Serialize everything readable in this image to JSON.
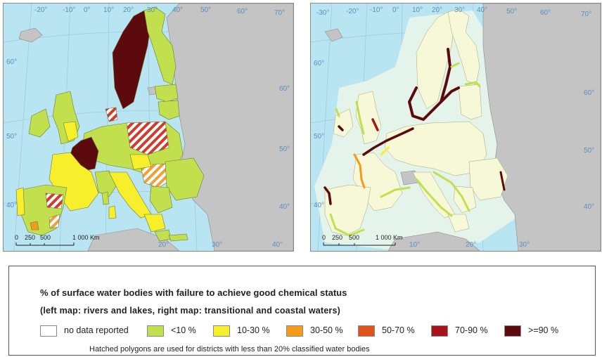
{
  "left_map": {
    "caption": "rivers and lakes",
    "graticule_labels_top": [
      "-20°",
      "-10°",
      "0°",
      "10°",
      "20°",
      "30°",
      "40°",
      "50°",
      "60°",
      "70°"
    ],
    "graticule_labels_left": [
      "60°",
      "50°",
      "40°"
    ],
    "graticule_labels_right": [
      "60°",
      "50°",
      "40°"
    ],
    "graticule_labels_bottom": [
      "10°",
      "20°",
      "30°",
      "40°"
    ],
    "scale_labels": [
      "0",
      "250",
      "500",
      "1 000 Km"
    ]
  },
  "right_map": {
    "caption": "transitional and coastal waters",
    "graticule_labels_top": [
      "-30°",
      "-20°",
      "-10°",
      "0°",
      "10°",
      "20°",
      "30°",
      "40°",
      "50°",
      "60°",
      "70°"
    ],
    "graticule_labels_left": [
      "60°",
      "50°",
      "40°"
    ],
    "graticule_labels_right": [
      "60°",
      "50°",
      "40°"
    ],
    "graticule_labels_bottom": [
      "10°",
      "20°",
      "30°",
      "40°"
    ],
    "scale_labels": [
      "0",
      "250",
      "500",
      "1 000 Km"
    ]
  },
  "legend": {
    "title": "% of surface water bodies with failure to achieve good chemical status",
    "subtitle": "(left map: rivers and lakes, right map: transitional and coastal waters)",
    "items": [
      {
        "label": "no data reported",
        "color": "#ffffff"
      },
      {
        "label": "<10 %",
        "color": "#c2e04e"
      },
      {
        "label": "10-30 %",
        "color": "#f8ef2c"
      },
      {
        "label": "30-50 %",
        "color": "#f59a1b"
      },
      {
        "label": "50-70 %",
        "color": "#e0521b"
      },
      {
        "label": "70-90 %",
        "color": "#a8141c"
      },
      {
        "label": ">=90 %",
        "color": "#5c0a0e"
      }
    ],
    "note": "Hatched polygons are used for districts with less than 20% classified water bodies"
  },
  "colors": {
    "sea": "#b9e4f1",
    "land_other": "#c4c4c4",
    "coast_buffer": "#e4f4ea",
    "eu_land_right": "#f6f8d8"
  }
}
